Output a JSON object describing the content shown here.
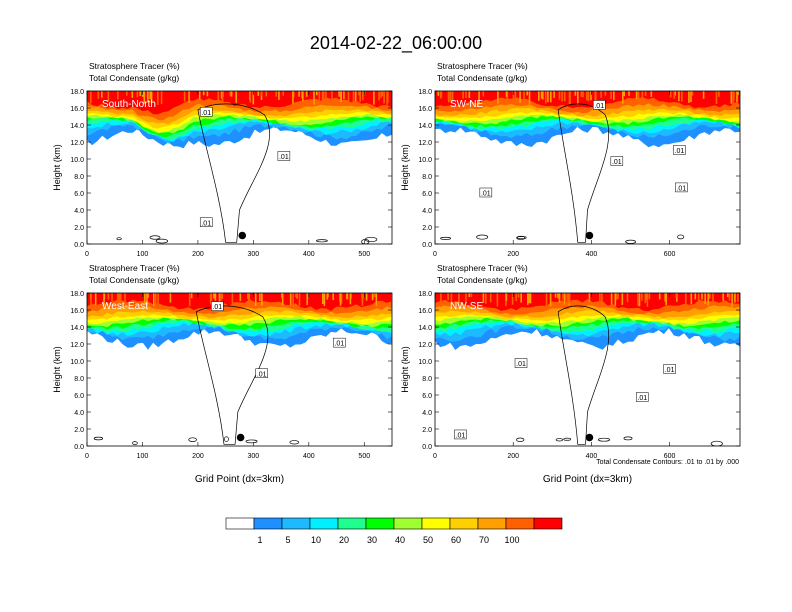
{
  "title": "2014-02-22_06:00:00",
  "panel_header": {
    "line1": "Stratosphere Tracer   (%)",
    "line2": "Total Condensate   (g/kg)"
  },
  "colors": {
    "scale": [
      "#ffffff",
      "#1e90ff",
      "#1ebaff",
      "#00f0ff",
      "#1eff90",
      "#00ff00",
      "#a0ff30",
      "#ffff00",
      "#ffd000",
      "#ffa000",
      "#ff6000",
      "#ff0000"
    ],
    "text_in_panel": "#ffffff",
    "contour": "#000000"
  },
  "colorbar": {
    "labels": [
      "1",
      "5",
      "10",
      "20",
      "30",
      "40",
      "50",
      "60",
      "70",
      "100"
    ]
  },
  "footer_note": "Total Condensate Contours: .01 to .01 by .000",
  "chart_data": [
    {
      "type": "heatmap",
      "panel_title": "South-North",
      "xlabel": "",
      "ylabel": "Height (km)",
      "xlim": [
        0,
        550
      ],
      "ylim": [
        0,
        18
      ],
      "xticks": [
        0,
        100,
        200,
        300,
        400,
        500
      ],
      "xtick_labels": [
        "0",
        "100",
        "200",
        "300",
        "400",
        "500"
      ],
      "yticks": [
        0,
        2,
        4,
        6,
        8,
        10,
        12,
        14,
        16,
        18
      ],
      "ytick_labels": [
        "0.0",
        "2.0",
        "4.0",
        "6.0",
        "8.0",
        "10.0",
        "12.0",
        "14.0",
        "16.0",
        "18.0"
      ],
      "marker": {
        "x": 280,
        "y": 1.0
      },
      "contour_labels": [
        {
          "text": ".01",
          "x": 215,
          "y": 15.5
        },
        {
          "text": ".01",
          "x": 355,
          "y": 10.3
        },
        {
          "text": ".01",
          "x": 215,
          "y": 2.5
        }
      ]
    },
    {
      "type": "heatmap",
      "panel_title": "SW-NE",
      "xlabel": "",
      "ylabel": "Height (km)",
      "xlim": [
        0,
        780
      ],
      "ylim": [
        0,
        18
      ],
      "xticks": [
        0,
        200,
        400,
        600
      ],
      "xtick_labels": [
        "0",
        "200",
        "400",
        "600"
      ],
      "yticks": [
        0,
        2,
        4,
        6,
        8,
        10,
        12,
        14,
        16,
        18
      ],
      "ytick_labels": [
        "0.0",
        "2.0",
        "4.0",
        "6.0",
        "8.0",
        "10.0",
        "12.0",
        "14.0",
        "16.0",
        "18.0"
      ],
      "marker": {
        "x": 395,
        "y": 1.0
      },
      "contour_labels": [
        {
          "text": ".01",
          "x": 420,
          "y": 16.3
        },
        {
          "text": ".01",
          "x": 465,
          "y": 9.7
        },
        {
          "text": ".01",
          "x": 625,
          "y": 11.0
        },
        {
          "text": ".01",
          "x": 130,
          "y": 6.0
        },
        {
          "text": ".01",
          "x": 630,
          "y": 6.6
        }
      ]
    },
    {
      "type": "heatmap",
      "panel_title": "West-East",
      "xlabel": "Grid Point (dx=3km)",
      "ylabel": "Height (km)",
      "xlim": [
        0,
        550
      ],
      "ylim": [
        0,
        18
      ],
      "xticks": [
        0,
        100,
        200,
        300,
        400,
        500
      ],
      "xtick_labels": [
        "0",
        "100",
        "200",
        "300",
        "400",
        "500"
      ],
      "yticks": [
        0,
        2,
        4,
        6,
        8,
        10,
        12,
        14,
        16,
        18
      ],
      "ytick_labels": [
        "0.0",
        "2.0",
        "4.0",
        "6.0",
        "8.0",
        "10.0",
        "12.0",
        "14.0",
        "16.0",
        "18.0"
      ],
      "marker": {
        "x": 277,
        "y": 1.0
      },
      "contour_labels": [
        {
          "text": ".01",
          "x": 235,
          "y": 16.4
        },
        {
          "text": ".01",
          "x": 455,
          "y": 12.1
        },
        {
          "text": ".01",
          "x": 315,
          "y": 8.5
        }
      ]
    },
    {
      "type": "heatmap",
      "panel_title": "NW-SE",
      "xlabel": "Grid Point (dx=3km)",
      "ylabel": "Height (km)",
      "xlim": [
        0,
        780
      ],
      "ylim": [
        0,
        18
      ],
      "xticks": [
        0,
        200,
        400,
        600
      ],
      "xtick_labels": [
        "0",
        "200",
        "400",
        "600"
      ],
      "yticks": [
        0,
        2,
        4,
        6,
        8,
        10,
        12,
        14,
        16,
        18
      ],
      "ytick_labels": [
        "0.0",
        "2.0",
        "4.0",
        "6.0",
        "8.0",
        "10.0",
        "12.0",
        "14.0",
        "16.0",
        "18.0"
      ],
      "marker": {
        "x": 395,
        "y": 1.0
      },
      "contour_labels": [
        {
          "text": ".01",
          "x": 220,
          "y": 9.7
        },
        {
          "text": ".01",
          "x": 530,
          "y": 5.7
        },
        {
          "text": ".01",
          "x": 600,
          "y": 9.0
        },
        {
          "text": ".01",
          "x": 65,
          "y": 1.3
        }
      ]
    }
  ]
}
